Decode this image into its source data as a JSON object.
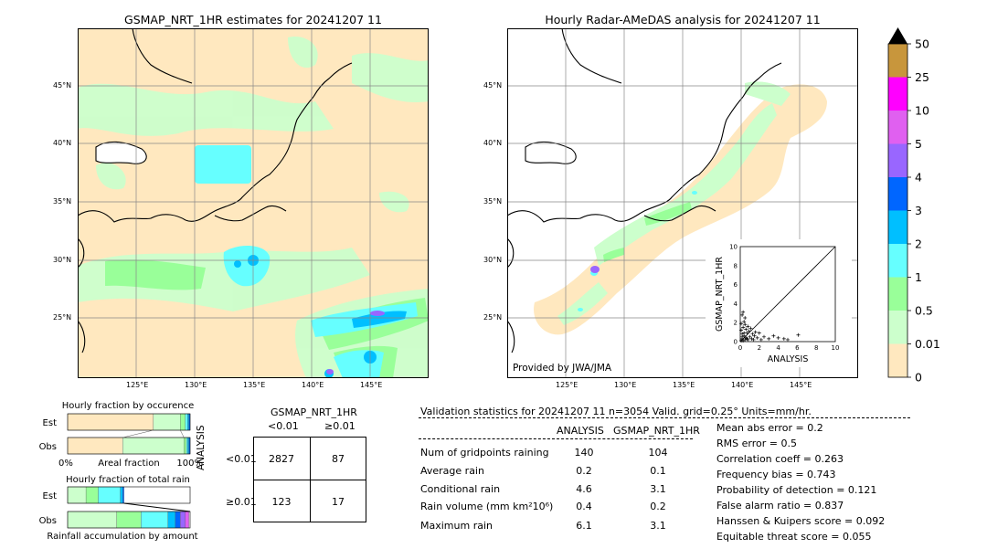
{
  "map_left": {
    "title": "GSMAP_NRT_1HR estimates for 20241207 11",
    "lat_labels": [
      "45°N",
      "40°N",
      "35°N",
      "30°N",
      "25°N"
    ],
    "lon_labels": [
      "125°E",
      "130°E",
      "135°E",
      "140°E",
      "145°E"
    ]
  },
  "map_right": {
    "title": "Hourly Radar-AMeDAS analysis for 20241207 11",
    "lat_labels": [
      "45°N",
      "40°N",
      "35°N",
      "30°N",
      "25°N"
    ],
    "lon_labels": [
      "125°E",
      "130°E",
      "135°E",
      "140°E",
      "145°E"
    ],
    "credit": "Provided by JWA/JMA"
  },
  "colorbar": {
    "labels": [
      "50",
      "25",
      "10",
      "5",
      "4",
      "3",
      "2",
      "1",
      "0.5",
      "0.01",
      "0"
    ],
    "colors": [
      "#c8963c",
      "#ff00ff",
      "#e060f0",
      "#9966ff",
      "#0066ff",
      "#00bfff",
      "#66ffff",
      "#99ff99",
      "#ccffcc",
      "#ffe8bf"
    ],
    "over_color": "#000000"
  },
  "chart_data": [
    {
      "type": "scatter",
      "title": "",
      "xlabel": "ANALYSIS",
      "ylabel": "GSMAP_NRT_1HR",
      "xlim": [
        0,
        10
      ],
      "ylim": [
        0,
        10
      ],
      "xticks": [
        "0",
        "2",
        "4",
        "6",
        "8",
        "10"
      ],
      "yticks": [
        "0",
        "2",
        "4",
        "6",
        "8",
        "10"
      ],
      "points": [
        [
          0.1,
          0.1
        ],
        [
          0.2,
          0.3
        ],
        [
          0.3,
          0.1
        ],
        [
          0.4,
          0.6
        ],
        [
          0.5,
          0.2
        ],
        [
          0.2,
          0.8
        ],
        [
          0.6,
          0.4
        ],
        [
          0.1,
          1.2
        ],
        [
          0.3,
          1.5
        ],
        [
          0.7,
          0.9
        ],
        [
          0.8,
          0.2
        ],
        [
          0.4,
          2.1
        ],
        [
          0.2,
          2.8
        ],
        [
          0.5,
          1.8
        ],
        [
          1.0,
          0.5
        ],
        [
          1.2,
          0.3
        ],
        [
          0.9,
          1.1
        ],
        [
          1.5,
          0.6
        ],
        [
          0.3,
          3.1
        ],
        [
          1.1,
          1.4
        ],
        [
          1.8,
          0.4
        ],
        [
          2.2,
          0.2
        ],
        [
          0.6,
          1.3
        ],
        [
          0.2,
          0.5
        ],
        [
          0.4,
          0.9
        ],
        [
          0.7,
          0.3
        ],
        [
          1.3,
          0.8
        ],
        [
          2.5,
          0.5
        ],
        [
          3.0,
          0.3
        ],
        [
          3.5,
          0.6
        ],
        [
          4.0,
          0.4
        ],
        [
          4.6,
          0.3
        ],
        [
          5.0,
          0.2
        ],
        [
          6.1,
          0.7
        ],
        [
          1.6,
          1.0
        ],
        [
          0.5,
          2.5
        ],
        [
          0.1,
          1.9
        ],
        [
          0.8,
          1.6
        ],
        [
          1.4,
          0.2
        ],
        [
          2.0,
          0.9
        ]
      ]
    },
    {
      "type": "bar",
      "title": "Hourly fraction by occurence",
      "categories": [
        "Est",
        "Obs"
      ],
      "xlabel": "Areal fraction",
      "xticks": [
        "0%",
        "100%"
      ],
      "series": [
        {
          "color": "#ffe8bf",
          "values": [
            0.7,
            0.45
          ]
        },
        {
          "color": "#ccffcc",
          "values": [
            0.22,
            0.5
          ]
        },
        {
          "color": "#99ff99",
          "values": [
            0.04,
            0.02
          ]
        },
        {
          "color": "#66ffff",
          "values": [
            0.02,
            0.01
          ]
        },
        {
          "color": "#00bfff",
          "values": [
            0.01,
            0.01
          ]
        },
        {
          "color": "#0066ff",
          "values": [
            0.01,
            0.01
          ]
        }
      ]
    },
    {
      "type": "bar",
      "title": "Hourly fraction of total rain",
      "categories": [
        "Est",
        "Obs"
      ],
      "xlabel": "Rainfall accumulation by amount",
      "series": [
        {
          "color": "#ccffcc",
          "values": [
            0.15,
            0.4
          ]
        },
        {
          "color": "#99ff99",
          "values": [
            0.1,
            0.2
          ]
        },
        {
          "color": "#66ffff",
          "values": [
            0.18,
            0.22
          ]
        },
        {
          "color": "#00bfff",
          "values": [
            0.02,
            0.06
          ]
        },
        {
          "color": "#0066ff",
          "values": [
            0.01,
            0.04
          ]
        },
        {
          "color": "#9966ff",
          "values": [
            0.0,
            0.04
          ]
        },
        {
          "color": "#e060f0",
          "values": [
            0.0,
            0.03
          ]
        }
      ]
    }
  ],
  "contingency": {
    "header": "GSMAP_NRT_1HR",
    "col_labels": [
      "<0.01",
      "≥0.01"
    ],
    "row_axis": "ANALYSIS",
    "row_labels": [
      "<0.01",
      "≥0.01"
    ],
    "cells": [
      [
        "2827",
        "87"
      ],
      [
        "123",
        "17"
      ]
    ]
  },
  "validation": {
    "header": "Validation statistics for 20241207 11  n=3054 Valid. grid=0.25° Units=mm/hr.",
    "col1": "ANALYSIS",
    "col2": "GSMAP_NRT_1HR",
    "rows": [
      {
        "label": "Num of gridpoints raining",
        "a": "140",
        "g": "104"
      },
      {
        "label": "Average rain",
        "a": "0.2",
        "g": "0.1"
      },
      {
        "label": "Conditional rain",
        "a": "4.6",
        "g": "3.1"
      },
      {
        "label": "Rain volume (mm km²10⁶)",
        "a": "0.4",
        "g": "0.2"
      },
      {
        "label": "Maximum rain",
        "a": "6.1",
        "g": "3.1"
      }
    ],
    "scores": [
      "Mean abs error =    0.2",
      "RMS error =    0.5",
      "Correlation coeff =  0.263",
      "Frequency bias =  0.743",
      "Probability of detection =  0.121",
      "False alarm ratio =  0.837",
      "Hanssen & Kuipers score =  0.092",
      "Equitable threat score =  0.055"
    ]
  }
}
